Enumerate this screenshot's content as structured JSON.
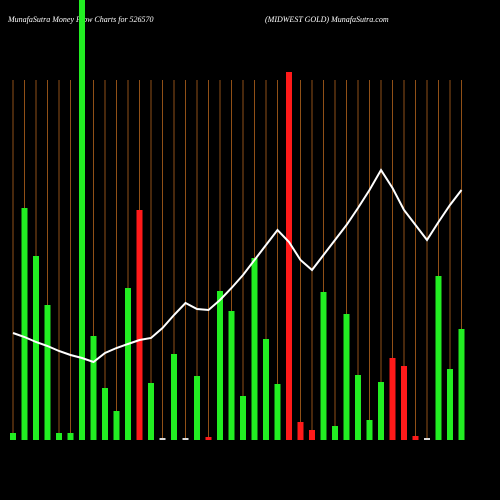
{
  "chart_data": {
    "type": "bar",
    "title": "MunafaSutra  Money Flow  Charts for 526570",
    "subtitle": "(MIDWEST GOLD) MunafaSutra.com",
    "categories": [
      null,
      null,
      null,
      null,
      null,
      null,
      null,
      null,
      null,
      null,
      null,
      null,
      null,
      null,
      null,
      null,
      null,
      null,
      null,
      null,
      null,
      null,
      null,
      null,
      null,
      null,
      null,
      null,
      null,
      null,
      null,
      null,
      null,
      null,
      null,
      null,
      null,
      null,
      null,
      null
    ],
    "ylim": [
      0,
      440
    ],
    "gridline_color": "#b5651d",
    "series": [
      {
        "type": "bar",
        "values": [
          7,
          232,
          184,
          135,
          7,
          7,
          440,
          104,
          52,
          29,
          152,
          230,
          57,
          2,
          86,
          2,
          64,
          3,
          149,
          129,
          44,
          182,
          101,
          56,
          368,
          18,
          10,
          148,
          14,
          126,
          65,
          20,
          58,
          82,
          74,
          4,
          2,
          164,
          71,
          111
        ],
        "colors": [
          "#22ee22",
          "#22ee22",
          "#22ee22",
          "#22ee22",
          "#22ee22",
          "#22ee22",
          "#22ee22",
          "#22ee22",
          "#22ee22",
          "#22ee22",
          "#22ee22",
          "#ff1a1a",
          "#22ee22",
          "#dddddd",
          "#22ee22",
          "#dddddd",
          "#22ee22",
          "#ff1a1a",
          "#22ee22",
          "#22ee22",
          "#22ee22",
          "#22ee22",
          "#22ee22",
          "#22ee22",
          "#ff1a1a",
          "#ff1a1a",
          "#ff1a1a",
          "#22ee22",
          "#22ee22",
          "#22ee22",
          "#22ee22",
          "#22ee22",
          "#22ee22",
          "#ff1a1a",
          "#ff1a1a",
          "#ff1a1a",
          "#dddddd",
          "#22ee22",
          "#22ee22",
          "#22ee22"
        ]
      },
      {
        "type": "line",
        "color": "#ffffff",
        "values": [
          107,
          103,
          98,
          94,
          89,
          85,
          82,
          78,
          87,
          92,
          96,
          100,
          102,
          112,
          125,
          137,
          131,
          130,
          140,
          152,
          165,
          180,
          195,
          210,
          198,
          180,
          170,
          185,
          200,
          215,
          232,
          250,
          270,
          252,
          230,
          215,
          200,
          218,
          235,
          250
        ]
      }
    ]
  }
}
